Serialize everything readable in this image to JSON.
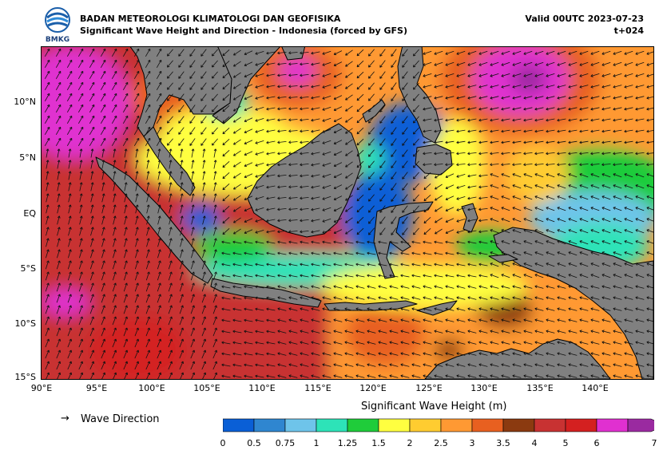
{
  "header": {
    "agency": "BADAN METEOROLOGI KLIMATOLOGI DAN GEOFISIKA",
    "subtitle": "Significant Wave Height and Direction - Indonesia (forced by GFS)",
    "valid": "Valid 00UTC 2023-07-23",
    "lead": "t+024",
    "logo_text": "BMKG"
  },
  "map": {
    "type": "geographic-field",
    "lon_range": [
      90,
      145
    ],
    "lat_range": [
      -15,
      15
    ],
    "lat_ticks": [
      "10°N",
      "5°N",
      "EQ",
      "5°S",
      "10°S",
      "15°S"
    ],
    "lon_ticks": [
      "90°E",
      "95°E",
      "100°E",
      "105°E",
      "110°E",
      "115°E",
      "120°E",
      "125°E",
      "130°E",
      "135°E",
      "140°E"
    ],
    "land_color": "#808080",
    "coast_color": "#000000"
  },
  "legend": {
    "wave_direction_symbol": "→",
    "wave_direction_label": "Wave Direction"
  },
  "colorbar": {
    "title": "Significant Wave Height (m)",
    "unit": "m",
    "bounds": [
      "0",
      "0.5",
      "0.75",
      "1",
      "1.25",
      "1.5",
      "2",
      "2.5",
      "3",
      "3.5",
      "4",
      "5",
      "6",
      "7"
    ],
    "colors": [
      "#0a5fd6",
      "#2f86d0",
      "#6ec4ea",
      "#2de3b8",
      "#1fcc3a",
      "#ffff40",
      "#ffcc30",
      "#ff9933",
      "#e86020",
      "#8b3a10",
      "#c83232",
      "#d42020",
      "#e030d0",
      "#9a2aa0"
    ],
    "extend": "max"
  }
}
